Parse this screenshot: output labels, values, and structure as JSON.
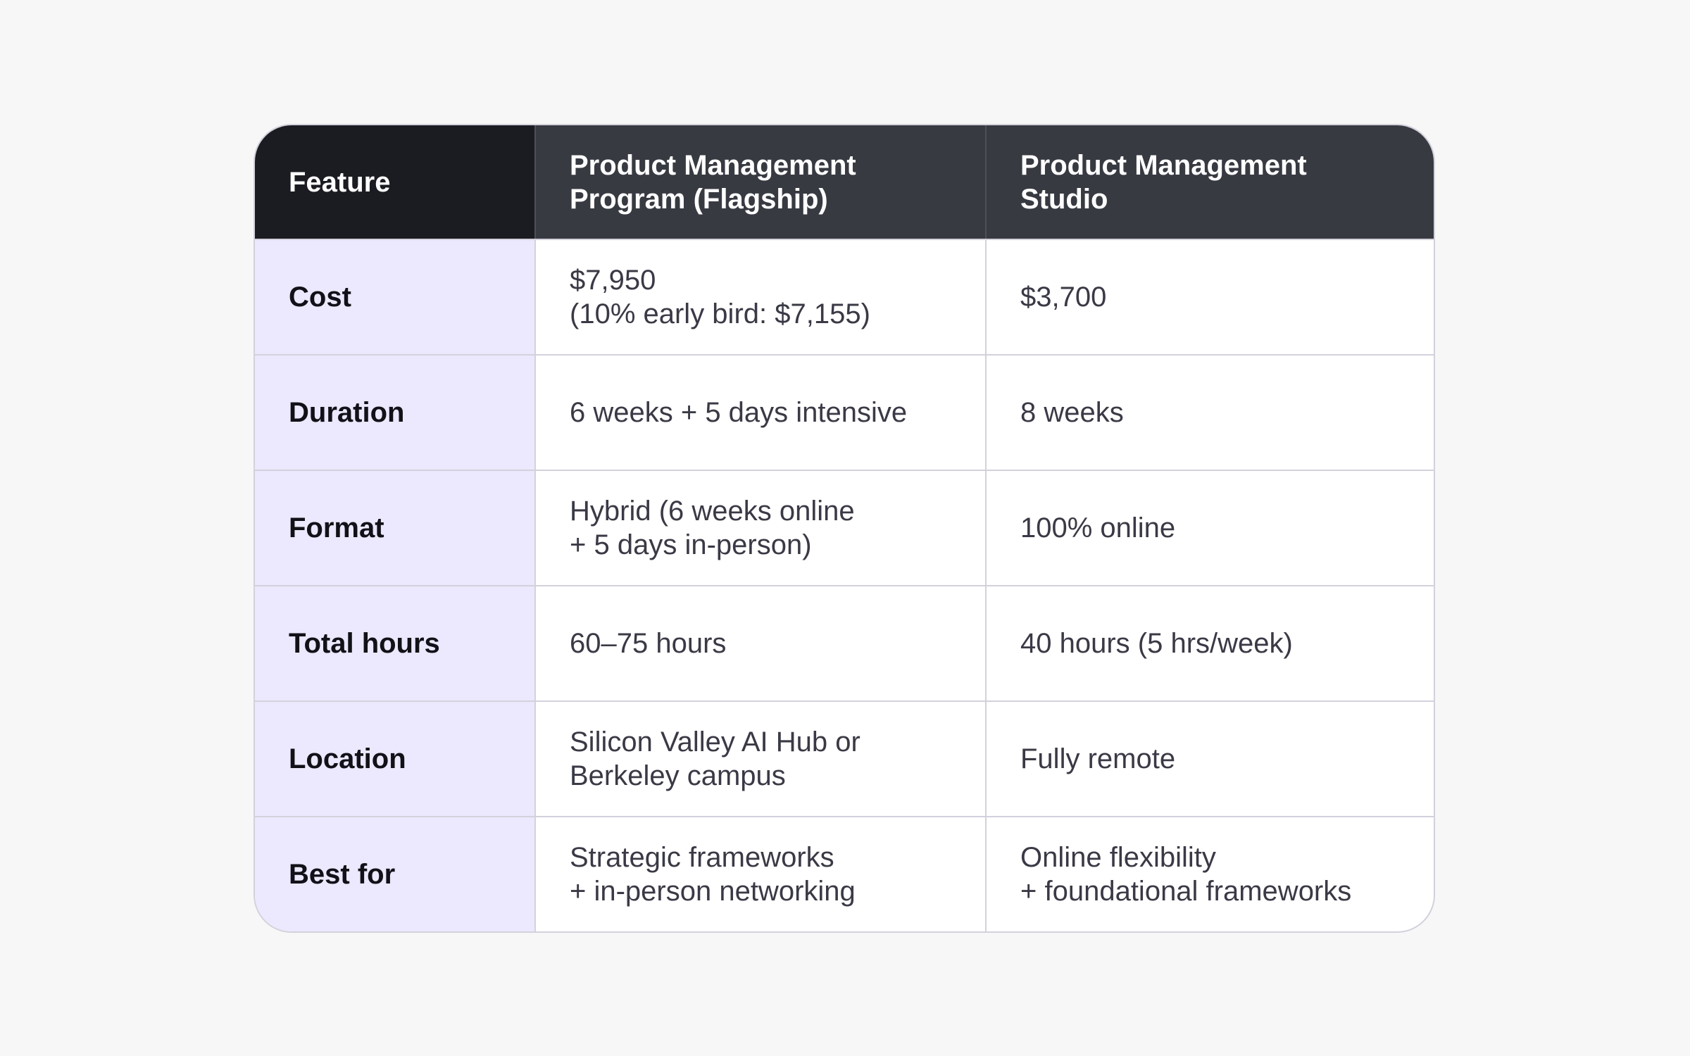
{
  "table": {
    "headers": [
      "Feature",
      "Product Management\nProgram (Flagship)",
      "Product Management\nStudio"
    ],
    "rows": [
      {
        "feature": "Cost",
        "flagship": "$7,950\n(10% early bird: $7,155)",
        "studio": "$3,700"
      },
      {
        "feature": "Duration",
        "flagship": "6 weeks + 5 days intensive",
        "studio": "8 weeks"
      },
      {
        "feature": "Format",
        "flagship": "Hybrid (6 weeks online\n+ 5 days in-person)",
        "studio": "100% online"
      },
      {
        "feature": "Total hours",
        "flagship": "60–75 hours",
        "studio": "40 hours (5 hrs/week)"
      },
      {
        "feature": "Location",
        "flagship": "Silicon Valley AI Hub or\nBerkeley campus",
        "studio": "Fully remote"
      },
      {
        "feature": "Best for",
        "flagship": "Strategic frameworks\n+ in-person networking",
        "studio": "Online flexibility\n+ foundational frameworks"
      }
    ]
  },
  "colors": {
    "header_corner": "#1b1c22",
    "header": "#383a42",
    "label_column": "#ece8fd",
    "border": "#d3d1dc",
    "page_background": "#f7f7f7"
  }
}
